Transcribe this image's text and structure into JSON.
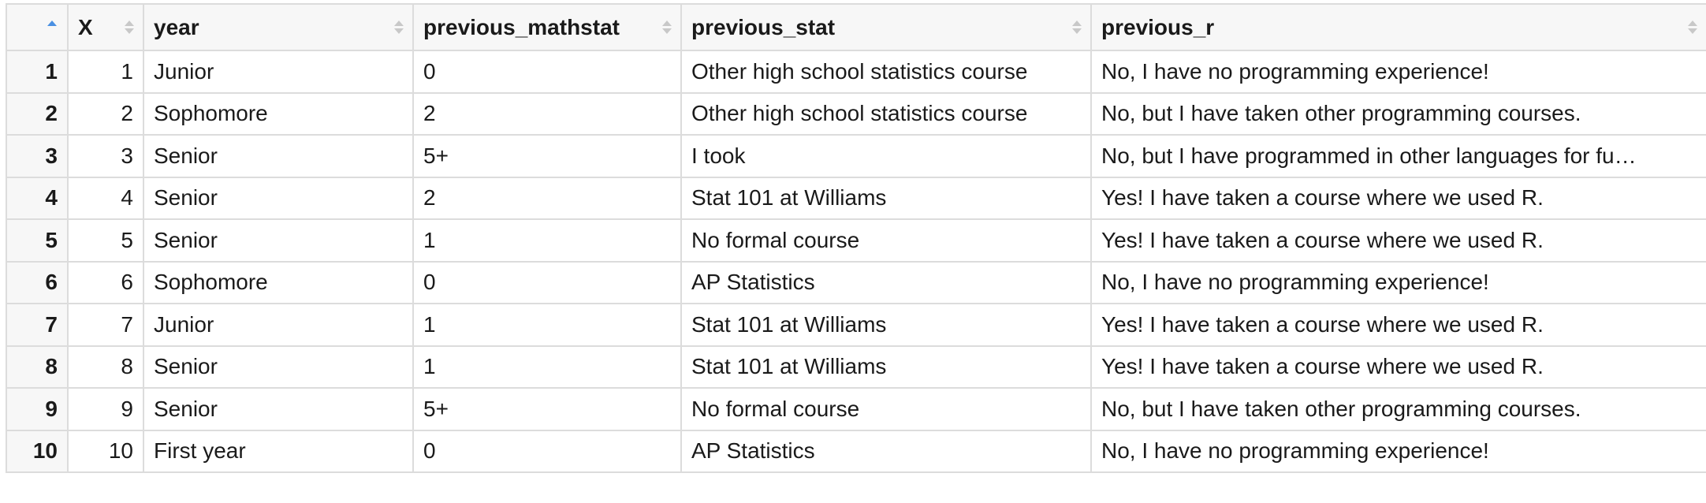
{
  "table": {
    "columns": [
      {
        "label": "X"
      },
      {
        "label": "year"
      },
      {
        "label": "previous_mathstat"
      },
      {
        "label": "previous_stat"
      },
      {
        "label": "previous_r"
      }
    ],
    "rows": [
      {
        "n": "1",
        "x": "1",
        "year": "Junior",
        "previous_mathstat": "0",
        "previous_stat": "Other high school statistics course",
        "previous_r": "No, I have no programming experience!"
      },
      {
        "n": "2",
        "x": "2",
        "year": "Sophomore",
        "previous_mathstat": "2",
        "previous_stat": "Other high school statistics course",
        "previous_r": "No, but I have taken other programming courses."
      },
      {
        "n": "3",
        "x": "3",
        "year": "Senior",
        "previous_mathstat": "5+",
        "previous_stat": "I took",
        "previous_r": "No, but I have programmed in other languages for fu…"
      },
      {
        "n": "4",
        "x": "4",
        "year": "Senior",
        "previous_mathstat": "2",
        "previous_stat": "Stat 101 at Williams",
        "previous_r": "Yes! I have taken a course where we used R."
      },
      {
        "n": "5",
        "x": "5",
        "year": "Senior",
        "previous_mathstat": "1",
        "previous_stat": "No formal course",
        "previous_r": "Yes! I have taken a course where we used R."
      },
      {
        "n": "6",
        "x": "6",
        "year": "Sophomore",
        "previous_mathstat": "0",
        "previous_stat": "AP Statistics",
        "previous_r": "No, I have no programming experience!"
      },
      {
        "n": "7",
        "x": "7",
        "year": "Junior",
        "previous_mathstat": "1",
        "previous_stat": "Stat 101 at Williams",
        "previous_r": "Yes! I have taken a course where we used R."
      },
      {
        "n": "8",
        "x": "8",
        "year": "Senior",
        "previous_mathstat": "1",
        "previous_stat": "Stat 101 at Williams",
        "previous_r": "Yes! I have taken a course where we used R."
      },
      {
        "n": "9",
        "x": "9",
        "year": "Senior",
        "previous_mathstat": "5+",
        "previous_stat": "No formal course",
        "previous_r": "No, but I have taken other programming courses."
      },
      {
        "n": "10",
        "x": "10",
        "year": "First year",
        "previous_mathstat": "0",
        "previous_stat": "AP Statistics",
        "previous_r": "No, I have no programming experience!"
      }
    ]
  },
  "icons": {
    "sort": "sort-icon",
    "sort_active": "sort-ascending-icon"
  },
  "colors": {
    "sort_active": "#4a90e2",
    "border": "#dcdcdc",
    "header_bg": "#f7f7f7"
  }
}
